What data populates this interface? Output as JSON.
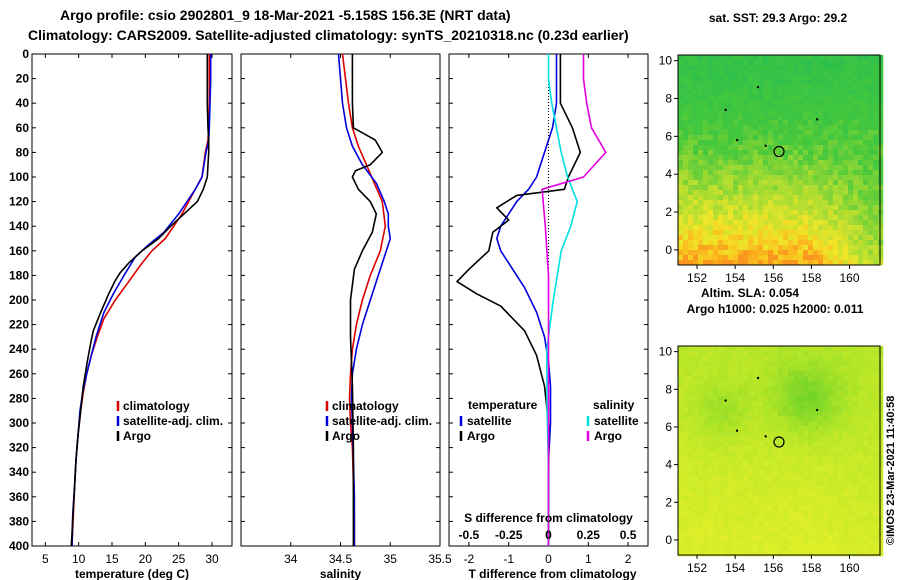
{
  "header": {
    "line1": "Argo profile: csio 2902801_9 18-Mar-2021 -5.158S 156.3E (NRT data)",
    "line2": "Climatology: CARS2009. Satellite-adjusted climatology: synTS_20210318.nc (0.23d earlier)"
  },
  "side_stamp": "©IMOS 23-Mar-2021 11:40:58",
  "colors": {
    "climatology": "#dd0000",
    "satellite": "#0000dd",
    "argo": "#000000",
    "sal_satellite": "#00e0e0",
    "sal_argo": "#e000e0"
  },
  "chart_data": [
    {
      "type": "line",
      "title": "",
      "xlabel": "temperature (deg C)",
      "ylabel": "",
      "xlim": [
        3,
        33
      ],
      "ylim": [
        400,
        0
      ],
      "xticks": [
        5,
        10,
        15,
        20,
        25,
        30
      ],
      "xtick_labels": [
        "5",
        "10",
        "15",
        "20",
        "25",
        "30"
      ],
      "yticks": [
        0,
        20,
        40,
        60,
        80,
        100,
        120,
        140,
        160,
        180,
        200,
        220,
        240,
        260,
        280,
        300,
        320,
        340,
        360,
        380,
        400
      ],
      "ytick_labels": [
        "0",
        "20",
        "40",
        "60",
        "80",
        "100",
        "120",
        "140",
        "160",
        "180",
        "200",
        "220",
        "240",
        "260",
        "280",
        "300",
        "320",
        "340",
        "360",
        "380",
        "400"
      ],
      "legend": {
        "position": "lower-right",
        "entries": [
          "climatology",
          "satellite-adj. clim.",
          "Argo"
        ]
      },
      "series": [
        {
          "name": "climatology",
          "color": "#dd0000",
          "x": [
            29.6,
            29.6,
            29.6,
            29.5,
            29.4,
            29.0,
            28.5,
            27.5,
            25.5,
            23.0,
            21.0,
            19.5,
            17.5,
            15.5,
            13.8,
            12.8,
            11.9,
            11.2,
            10.7,
            10.3,
            9.9,
            9.6,
            9.4,
            9.2,
            9.0
          ],
          "y": [
            0,
            20,
            40,
            60,
            70,
            80,
            100,
            110,
            130,
            150,
            160,
            170,
            185,
            200,
            215,
            230,
            245,
            260,
            275,
            290,
            310,
            330,
            350,
            375,
            400
          ]
        },
        {
          "name": "satellite-adj. clim.",
          "color": "#0000dd",
          "x": [
            29.8,
            29.8,
            29.7,
            29.6,
            29.5,
            29.1,
            28.5,
            27.5,
            25.0,
            22.8,
            20.5,
            18.5,
            16.8,
            15.2,
            13.8,
            12.6,
            11.9,
            11.2,
            10.6,
            10.2,
            9.9,
            9.6,
            9.4,
            9.1,
            9.0
          ],
          "y": [
            0,
            20,
            40,
            60,
            70,
            80,
            100,
            110,
            130,
            145,
            155,
            165,
            180,
            195,
            210,
            230,
            245,
            260,
            275,
            290,
            310,
            330,
            350,
            375,
            400
          ]
        },
        {
          "name": "Argo",
          "color": "#000000",
          "x": [
            29.3,
            29.3,
            29.3,
            29.4,
            29.5,
            29.5,
            29.3,
            28.7,
            27.8,
            25.8,
            23.8,
            22.0,
            19.5,
            17.5,
            16.2,
            15.4,
            14.5,
            13.3,
            12.2,
            11.8,
            11.3,
            10.7,
            10.3,
            9.9,
            9.6,
            9.4,
            9.2,
            9.0,
            8.9
          ],
          "y": [
            0,
            20,
            40,
            60,
            70,
            80,
            100,
            110,
            120,
            130,
            140,
            150,
            160,
            170,
            178,
            185,
            195,
            210,
            225,
            235,
            250,
            270,
            290,
            310,
            330,
            350,
            370,
            390,
            400
          ]
        }
      ]
    },
    {
      "type": "line",
      "title": "",
      "xlabel": "salinity",
      "ylabel": "",
      "xlim": [
        33.5,
        35.5
      ],
      "ylim": [
        400,
        0
      ],
      "xticks": [
        34,
        34.5,
        35,
        35.5
      ],
      "xtick_labels": [
        "34",
        "34.5",
        "35",
        "35.5"
      ],
      "legend": {
        "position": "lower-right",
        "entries": [
          "climatology",
          "satellite-adj. clim.",
          "Argo"
        ]
      },
      "series": [
        {
          "name": "climatology",
          "color": "#dd0000",
          "x": [
            34.52,
            34.55,
            34.58,
            34.62,
            34.68,
            34.76,
            34.84,
            34.92,
            34.95,
            34.9,
            34.8,
            34.72,
            34.66,
            34.62,
            34.6,
            34.59,
            34.6,
            34.62,
            34.63,
            34.64,
            34.64
          ],
          "y": [
            0,
            20,
            40,
            60,
            75,
            90,
            105,
            120,
            140,
            160,
            180,
            200,
            220,
            240,
            260,
            280,
            300,
            320,
            350,
            380,
            400
          ]
        },
        {
          "name": "satellite-adj. clim.",
          "color": "#0000dd",
          "x": [
            34.48,
            34.5,
            34.52,
            34.56,
            34.62,
            34.72,
            34.86,
            34.94,
            34.98,
            34.98,
            35.0,
            34.96,
            34.88,
            34.8,
            34.72,
            34.66,
            34.62,
            34.61,
            34.62,
            34.63,
            34.64,
            34.64
          ],
          "y": [
            0,
            20,
            40,
            60,
            75,
            90,
            105,
            120,
            130,
            140,
            150,
            160,
            180,
            200,
            220,
            240,
            260,
            280,
            300,
            330,
            360,
            400
          ]
        },
        {
          "name": "Argo",
          "color": "#000000",
          "x": [
            34.62,
            34.62,
            34.62,
            34.63,
            34.85,
            34.92,
            34.8,
            34.65,
            34.62,
            34.68,
            34.8,
            34.86,
            34.82,
            34.72,
            34.64,
            34.6,
            34.6,
            34.62,
            34.63,
            34.63,
            34.63
          ],
          "y": [
            0,
            20,
            40,
            60,
            70,
            80,
            90,
            95,
            100,
            110,
            120,
            130,
            145,
            160,
            175,
            200,
            230,
            270,
            320,
            370,
            400
          ]
        }
      ]
    },
    {
      "type": "line",
      "title": "",
      "xlabel": "T difference from climatology",
      "xlabel_top": "S difference from climatology",
      "ylabel": "",
      "xlim": [
        -2.5,
        2.5
      ],
      "ylim": [
        400,
        0
      ],
      "xticks": [
        -2,
        -1,
        0,
        1,
        2
      ],
      "xtick_labels": [
        "-2",
        "-1",
        "0",
        "1",
        "2"
      ],
      "s_xlim": [
        -0.625,
        0.625
      ],
      "s_xticks": [
        -0.5,
        -0.25,
        0,
        0.25,
        0.5
      ],
      "s_xtick_labels": [
        "-0.5",
        "-0.25",
        "0",
        "0.25",
        "0.5"
      ],
      "legend": {
        "position": "lower",
        "temperature_heading": "temperature",
        "salinity_heading": "salinity",
        "entries_t": [
          "satellite",
          "Argo"
        ],
        "entries_s": [
          "satellite",
          "Argo"
        ]
      },
      "series": [
        {
          "name": "temperature satellite",
          "color": "#0000dd",
          "x": [
            0.2,
            0.2,
            0.2,
            0.1,
            -0.1,
            -0.3,
            -0.5,
            -0.8,
            -1.0,
            -1.2,
            -1.3,
            -1.2,
            -1.0,
            -0.6,
            -0.3,
            -0.1,
            0.0,
            0.05,
            0.05,
            0.0,
            0.0,
            0.0
          ],
          "y": [
            0,
            20,
            40,
            60,
            80,
            100,
            110,
            120,
            130,
            140,
            150,
            160,
            170,
            190,
            210,
            230,
            250,
            270,
            300,
            330,
            370,
            400
          ]
        },
        {
          "name": "temperature Argo",
          "color": "#000000",
          "x": [
            0.3,
            0.3,
            0.3,
            0.6,
            0.8,
            0.5,
            0.4,
            -0.8,
            -1.3,
            -1.0,
            -1.4,
            -1.5,
            -2.0,
            -2.3,
            -1.8,
            -1.2,
            -0.6,
            -0.3,
            -0.1,
            0.0,
            0.0,
            0.0
          ],
          "y": [
            0,
            20,
            40,
            60,
            80,
            100,
            110,
            115,
            125,
            135,
            145,
            160,
            175,
            185,
            195,
            205,
            225,
            245,
            270,
            300,
            350,
            400
          ]
        },
        {
          "name": "salinity satellite",
          "color": "#00e0e0",
          "x": [
            0.0,
            0.0,
            0.02,
            0.08,
            0.12,
            0.18,
            0.14,
            0.08,
            0.03,
            -0.01,
            -0.01,
            0.0,
            0.0
          ],
          "y": [
            0,
            20,
            40,
            80,
            100,
            120,
            140,
            160,
            200,
            240,
            280,
            340,
            400
          ]
        },
        {
          "name": "salinity Argo",
          "color": "#e000e0",
          "x": [
            0.22,
            0.22,
            0.24,
            0.27,
            0.36,
            0.22,
            -0.04,
            -0.02,
            0.0,
            0.0,
            0.0,
            0.0
          ],
          "y": [
            0,
            20,
            40,
            60,
            80,
            100,
            110,
            140,
            180,
            220,
            300,
            400
          ]
        }
      ]
    },
    {
      "type": "heatmap",
      "title": "sat. SST: 29.3 Argo: 29.2",
      "xlabel": "",
      "xlim": [
        151,
        161.6
      ],
      "ylim": [
        -0.8,
        10.3
      ],
      "xticks": [
        152,
        154,
        156,
        158,
        160
      ],
      "xtick_labels": [
        "152",
        "154",
        "156",
        "158",
        "160"
      ],
      "yticks": [
        0,
        2,
        4,
        6,
        8,
        10
      ],
      "ytick_labels": [
        "0",
        "2",
        "4",
        "6",
        "8",
        "10"
      ],
      "marker": {
        "x": 156.3,
        "y": 5.2
      }
    },
    {
      "type": "heatmap",
      "title": "Altim. SLA: 0.054",
      "subtitle": "Argo h1000: 0.025 h2000: 0.011",
      "xlabel": "",
      "xlim": [
        151,
        161.6
      ],
      "ylim": [
        -0.8,
        10.3
      ],
      "xticks": [
        152,
        154,
        156,
        158,
        160
      ],
      "xtick_labels": [
        "152",
        "154",
        "156",
        "158",
        "160"
      ],
      "yticks": [
        0,
        2,
        4,
        6,
        8,
        10
      ],
      "ytick_labels": [
        "0",
        "2",
        "4",
        "6",
        "8",
        "10"
      ],
      "marker": {
        "x": 156.3,
        "y": 5.2
      }
    }
  ]
}
